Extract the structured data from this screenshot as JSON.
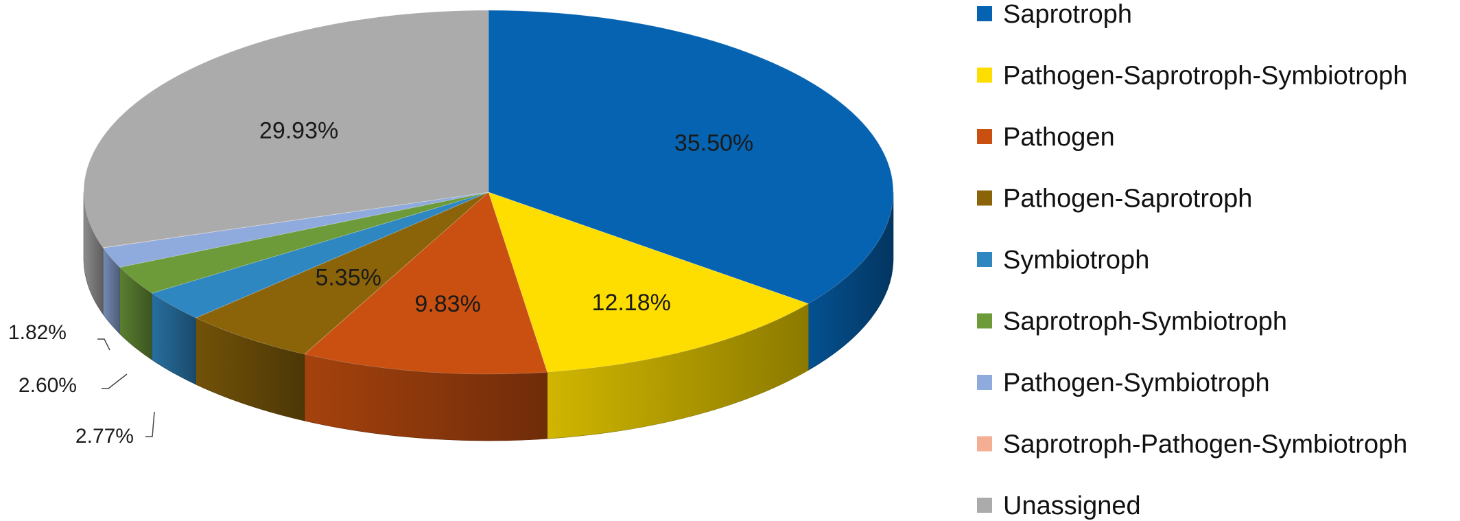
{
  "chart_data": {
    "type": "pie",
    "style": "3d",
    "legend_position": "right",
    "slices": [
      {
        "name": "Saprotroph",
        "value": 35.5,
        "label": "35.50%",
        "color": "#0563B1"
      },
      {
        "name": "Pathogen-Saprotroph-Symbiotroph",
        "value": 12.18,
        "label": "12.18%",
        "color": "#FEDE00"
      },
      {
        "name": "Pathogen",
        "value": 9.83,
        "label": "9.83%",
        "color": "#C95010"
      },
      {
        "name": "Pathogen-Saprotroph",
        "value": 5.35,
        "label": "5.35%",
        "color": "#8B640A"
      },
      {
        "name": "Symbiotroph",
        "value": 2.77,
        "label": "2.77%",
        "color": "#2F87C2"
      },
      {
        "name": "Saprotroph-Symbiotroph",
        "value": 2.6,
        "label": "2.60%",
        "color": "#6D9B3A"
      },
      {
        "name": "Pathogen-Symbiotroph",
        "value": 1.82,
        "label": "1.82%",
        "color": "#8FAADC"
      },
      {
        "name": "Saprotroph-Pathogen-Symbiotroph",
        "value": 0.02,
        "label": "",
        "color": "#F4AE94"
      },
      {
        "name": "Unassigned",
        "value": 29.93,
        "label": "29.93%",
        "color": "#ABABAB"
      }
    ]
  }
}
